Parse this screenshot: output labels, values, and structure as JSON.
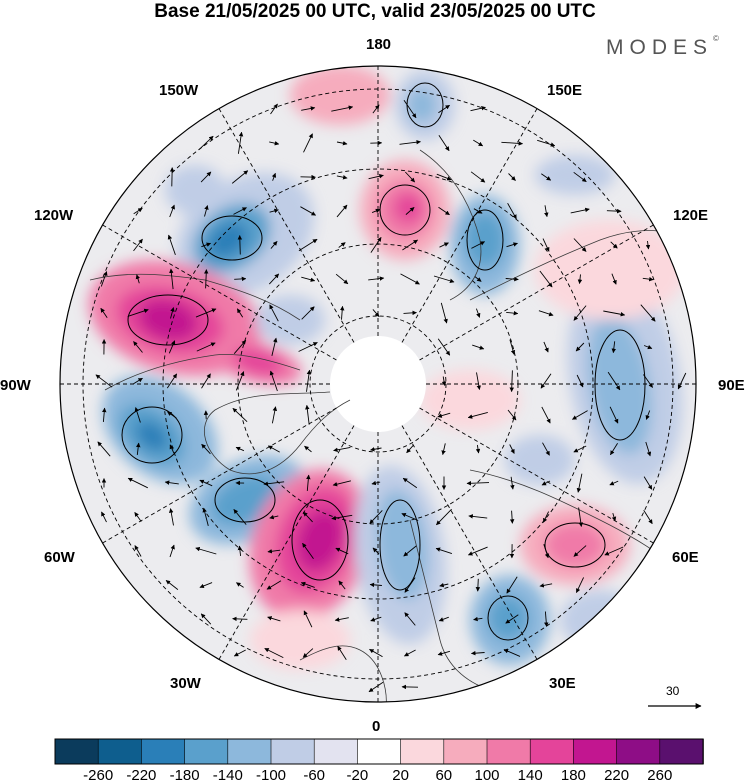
{
  "header": {
    "title": "Base 21/05/2025 00 UTC, valid 23/05/2025 00 UTC",
    "brand": "MODES",
    "brand_mark": "©"
  },
  "map": {
    "projection": "north polar stereographic",
    "longitude_labels": {
      "top": "180",
      "top_left": "150W",
      "top_right": "150E",
      "upper_left": "120W",
      "upper_right": "120E",
      "left": "90W",
      "right": "90E",
      "lower_left": "60W",
      "lower_right": "60E",
      "bottom_left": "30W",
      "bottom_right": "30E",
      "bottom": "0"
    },
    "reference_vector": "30",
    "colors": {
      "land_outline": "#3a3a3a",
      "grid_line": "#000000",
      "arrow": "#000000"
    }
  },
  "colorbar": {
    "colors": [
      "#0b3b5c",
      "#0e5e8e",
      "#2a7fb8",
      "#5aa0cc",
      "#8db8dc",
      "#c0cde6",
      "#e3e3f0",
      "#ffffff",
      "#fbd8dd",
      "#f6acbd",
      "#f07aa8",
      "#e4449a",
      "#c21690",
      "#8e0d86",
      "#5a106e"
    ],
    "ticks": [
      "-260",
      "-220",
      "-180",
      "-140",
      "-100",
      "-60",
      "-20",
      "20",
      "60",
      "100",
      "140",
      "180",
      "220",
      "260"
    ]
  }
}
